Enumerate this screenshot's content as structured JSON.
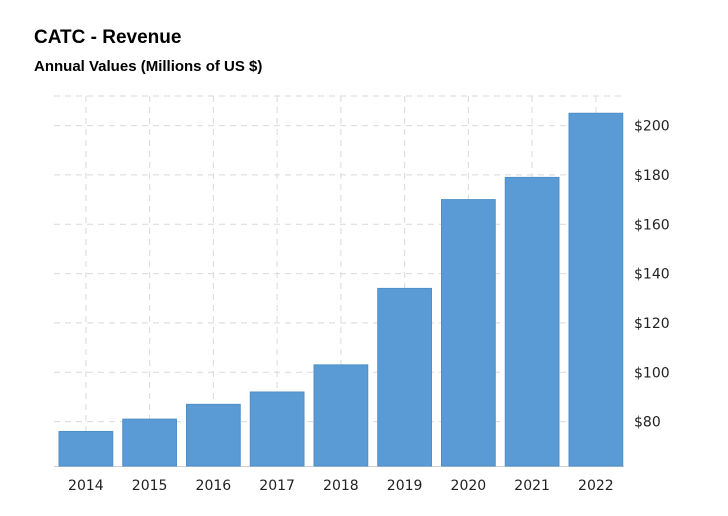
{
  "chart_data": {
    "type": "bar",
    "title": "CATC - Revenue",
    "subtitle": "Annual Values (Millions of US $)",
    "categories": [
      "2014",
      "2015",
      "2016",
      "2017",
      "2018",
      "2019",
      "2020",
      "2021",
      "2022"
    ],
    "values": [
      76,
      81,
      87,
      92,
      103,
      134,
      170,
      179,
      205
    ],
    "ylim": [
      62,
      212
    ],
    "yticks": [
      80,
      100,
      120,
      140,
      160,
      180,
      200
    ],
    "ytick_labels": [
      "$80",
      "$100",
      "$120",
      "$140",
      "$160",
      "$180",
      "$200"
    ],
    "y_axis_position": "right",
    "grid": true,
    "bar_color": "#5b9bd5"
  }
}
